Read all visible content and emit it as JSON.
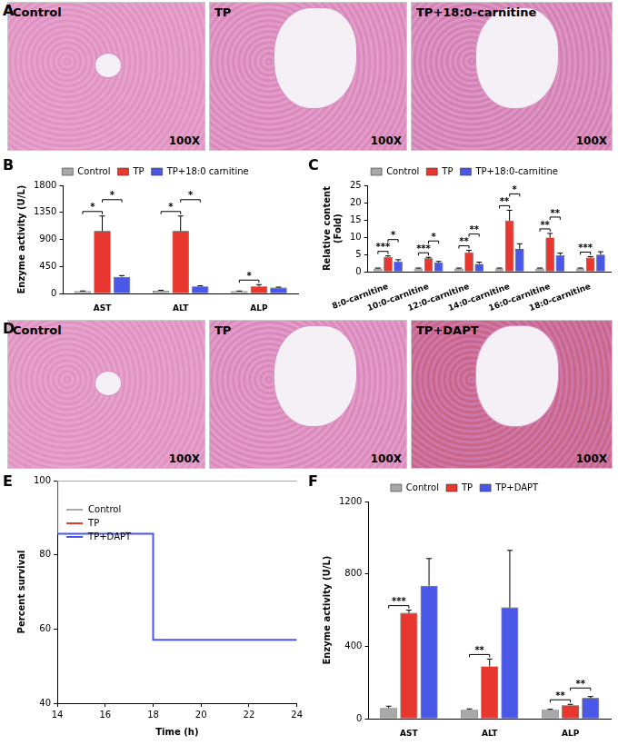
{
  "chart_data": [
    {
      "type": "bar",
      "title": "B",
      "y_label": "Enzyme activity (U/L)",
      "categories": [
        "AST",
        "ALT",
        "ALP"
      ],
      "series": [
        {
          "name": "Control",
          "color": "#a8a8a8",
          "values": [
            40,
            50,
            40
          ],
          "errors": [
            5,
            5,
            4
          ]
        },
        {
          "name": "TP",
          "color": "#e8372e",
          "values": [
            1040,
            1040,
            120
          ],
          "errors": [
            250,
            250,
            30
          ]
        },
        {
          "name": "TP+18:0 carnitine",
          "color": "#4a58e8",
          "values": [
            280,
            120,
            100
          ],
          "errors": [
            20,
            10,
            8
          ]
        }
      ],
      "significance": [
        {
          "category": "AST",
          "from": "Control",
          "to": "TP",
          "label": "*"
        },
        {
          "category": "AST",
          "from": "TP",
          "to": "TP+18:0 carnitine",
          "label": "*"
        },
        {
          "category": "ALT",
          "from": "Control",
          "to": "TP",
          "label": "*"
        },
        {
          "category": "ALT",
          "from": "TP",
          "to": "TP+18:0 carnitine",
          "label": "*"
        },
        {
          "category": "ALP",
          "from": "Control",
          "to": "TP",
          "label": "*"
        }
      ],
      "ylim": [
        0,
        1800
      ],
      "yticks": [
        0,
        450,
        900,
        1350,
        1800
      ],
      "grid": false,
      "legend": "top"
    },
    {
      "type": "bar",
      "title": "C",
      "y_label": [
        "Relative content",
        "(Fold)"
      ],
      "categories": [
        "8:0-carnitine",
        "10:0-carnitine",
        "12:0-carnitine",
        "14:0-carnitine",
        "16:0-carnitine",
        "18:0-carnitine"
      ],
      "series": [
        {
          "name": "Control",
          "color": "#a8a8a8",
          "values": [
            1,
            1,
            1,
            1,
            1,
            1
          ],
          "errors": [
            0.1,
            0.1,
            0.1,
            0.1,
            0.1,
            0.1
          ]
        },
        {
          "name": "TP",
          "color": "#e8372e",
          "values": [
            4.3,
            3.9,
            5.6,
            14.8,
            9.9,
            4.1
          ],
          "errors": [
            0.3,
            0.3,
            0.6,
            3.0,
            1.2,
            0.3
          ]
        },
        {
          "name": "TP+18:0-carnitine",
          "color": "#4a58e8",
          "values": [
            3.0,
            2.7,
            2.3,
            6.6,
            4.8,
            5.0
          ],
          "errors": [
            0.5,
            0.3,
            0.5,
            1.5,
            0.6,
            0.8
          ]
        }
      ],
      "significance": [
        {
          "category": "8:0-carnitine",
          "from": "Control",
          "to": "TP",
          "label": "***"
        },
        {
          "category": "8:0-carnitine",
          "from": "TP",
          "to": "TP+18:0-carnitine",
          "label": "*"
        },
        {
          "category": "10:0-carnitine",
          "from": "Control",
          "to": "TP",
          "label": "***"
        },
        {
          "category": "10:0-carnitine",
          "from": "TP",
          "to": "TP+18:0-carnitine",
          "label": "*"
        },
        {
          "category": "12:0-carnitine",
          "from": "Control",
          "to": "TP",
          "label": "**"
        },
        {
          "category": "12:0-carnitine",
          "from": "TP",
          "to": "TP+18:0-carnitine",
          "label": "**"
        },
        {
          "category": "14:0-carnitine",
          "from": "Control",
          "to": "TP",
          "label": "**"
        },
        {
          "category": "14:0-carnitine",
          "from": "TP",
          "to": "TP+18:0-carnitine",
          "label": "*"
        },
        {
          "category": "16:0-carnitine",
          "from": "Control",
          "to": "TP",
          "label": "**"
        },
        {
          "category": "16:0-carnitine",
          "from": "TP",
          "to": "TP+18:0-carnitine",
          "label": "**"
        },
        {
          "category": "18:0-carnitine",
          "from": "Control",
          "to": "TP",
          "label": "***"
        }
      ],
      "ylim": [
        0,
        25
      ],
      "yticks": [
        0,
        5,
        10,
        15,
        20,
        25
      ],
      "grid": false,
      "legend": "top"
    },
    {
      "type": "line",
      "title": "E",
      "x_label": "Time (h)",
      "y_label": "Percent survival",
      "series": [
        {
          "name": "Control",
          "color": "#a8a8a8",
          "x": [
            14,
            24
          ],
          "values": [
            100,
            100
          ],
          "line_style": "step"
        },
        {
          "name": "TP",
          "color": "#e8372e",
          "x": [
            14,
            24
          ],
          "values": [
            100,
            100
          ],
          "line_style": "step"
        },
        {
          "name": "TP+DAPT",
          "color": "#4a58e8",
          "x": [
            14,
            18,
            20,
            24
          ],
          "values": [
            100,
            85.7,
            57.1,
            57.1
          ],
          "line_style": "step"
        }
      ],
      "xlim": [
        14,
        24
      ],
      "xticks": [
        14,
        16,
        18,
        20,
        22,
        24
      ],
      "ylim": [
        40,
        100
      ],
      "yticks": [
        40,
        60,
        80,
        100
      ],
      "grid": false,
      "legend": "upper left"
    },
    {
      "type": "bar",
      "title": "F",
      "y_label": "Enzyme activity (U/L)",
      "categories": [
        "AST",
        "ALT",
        "ALP"
      ],
      "series": [
        {
          "name": "Control",
          "color": "#a8a8a8",
          "values": [
            60,
            50,
            50
          ],
          "errors": [
            10,
            5,
            3
          ]
        },
        {
          "name": "TP",
          "color": "#e8372e",
          "values": [
            585,
            290,
            75
          ],
          "errors": [
            15,
            40,
            5
          ]
        },
        {
          "name": "TP+DAPT",
          "color": "#4a58e8",
          "values": [
            735,
            615,
            115
          ],
          "errors": [
            150,
            315,
            8
          ]
        }
      ],
      "significance": [
        {
          "category": "AST",
          "from": "Control",
          "to": "TP",
          "label": "***"
        },
        {
          "category": "ALT",
          "from": "Control",
          "to": "TP",
          "label": "**"
        },
        {
          "category": "ALP",
          "from": "Control",
          "to": "TP",
          "label": "**"
        },
        {
          "category": "ALP",
          "from": "TP",
          "to": "TP+DAPT",
          "label": "**"
        }
      ],
      "ylim": [
        0,
        1200
      ],
      "yticks": [
        0,
        400,
        800,
        1200
      ],
      "grid": false,
      "legend": "top"
    }
  ],
  "images": [
    {
      "title": "A",
      "items": [
        {
          "label": "Control",
          "magnification": "100X"
        },
        {
          "label": "TP",
          "magnification": "100X"
        },
        {
          "label": "TP+18:0-carnitine",
          "magnification": "100X"
        }
      ]
    },
    {
      "title": "D",
      "items": [
        {
          "label": "Control",
          "magnification": "100X"
        },
        {
          "label": "TP",
          "magnification": "100X"
        },
        {
          "label": "TP+DAPT",
          "magnification": "100X"
        }
      ]
    }
  ]
}
